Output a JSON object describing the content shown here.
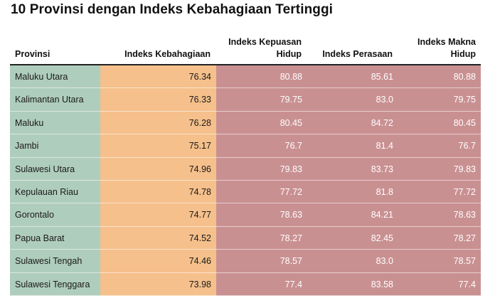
{
  "title": "10 Provinsi dengan Indeks Kebahagiaan Tertinggi",
  "colors": {
    "provinsi_bg": "#afcdbd",
    "kebahagiaan_bg": "#f5c08b",
    "sub_index_bg": "#c99092"
  },
  "chart_data": {
    "type": "table",
    "title": "10 Provinsi dengan Indeks Kebahagiaan Tertinggi",
    "columns": [
      "Provinsi",
      "Indeks Kebahagiaan",
      "Indeks Kepuasan Hidup",
      "Indeks Perasaan",
      "Indeks Makna Hidup"
    ],
    "rows": [
      [
        "Maluku Utara",
        "76.34",
        "80.88",
        "85.61",
        "80.88"
      ],
      [
        "Kalimantan Utara",
        "76.33",
        "79.75",
        "83.0",
        "79.75"
      ],
      [
        "Maluku",
        "76.28",
        "80.45",
        "84.72",
        "80.45"
      ],
      [
        "Jambi",
        "75.17",
        "76.7",
        "81.4",
        "76.7"
      ],
      [
        "Sulawesi Utara",
        "74.96",
        "79.83",
        "83.73",
        "79.83"
      ],
      [
        "Kepulauan Riau",
        "74.78",
        "77.72",
        "81.8",
        "77.72"
      ],
      [
        "Gorontalo",
        "74.77",
        "78.63",
        "84.21",
        "78.63"
      ],
      [
        "Papua Barat",
        "74.52",
        "78.27",
        "82.45",
        "78.27"
      ],
      [
        "Sulawesi Tengah",
        "74.46",
        "78.57",
        "83.0",
        "78.57"
      ],
      [
        "Sulawesi Tenggara",
        "73.98",
        "77.4",
        "83.58",
        "77.4"
      ]
    ]
  }
}
